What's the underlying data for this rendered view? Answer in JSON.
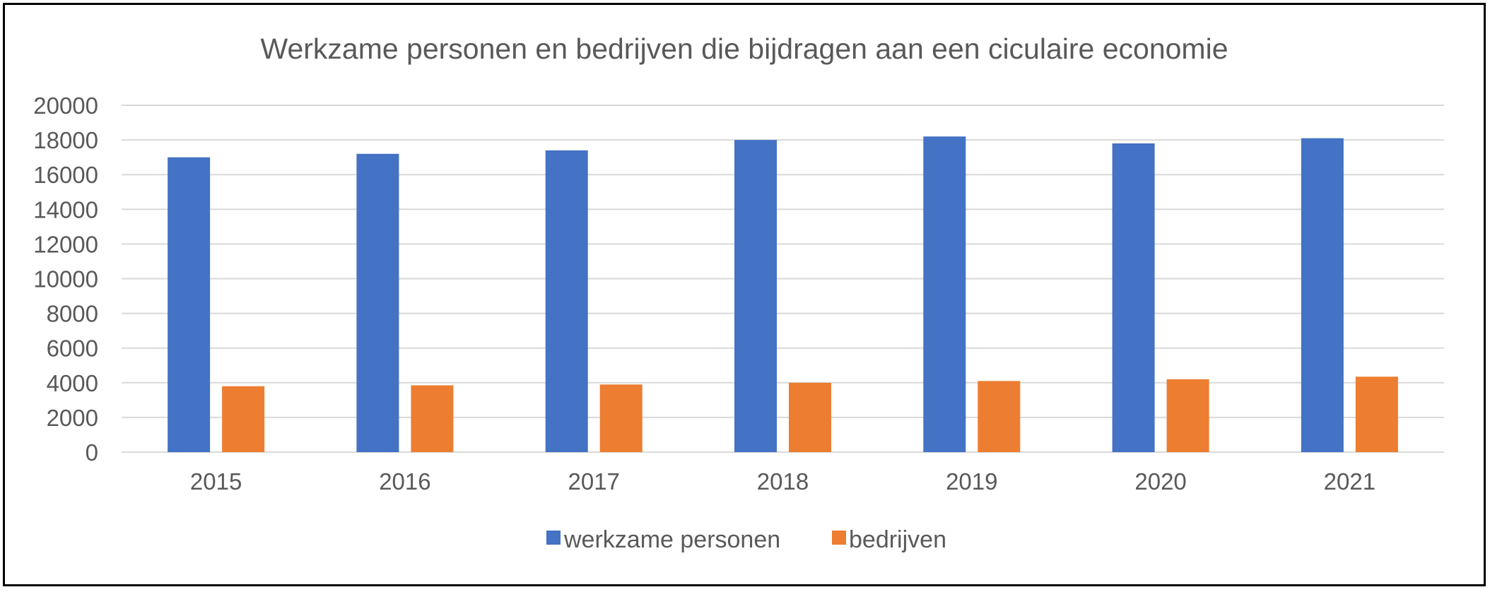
{
  "chart_data": {
    "type": "bar",
    "title": "Werkzame personen en bedrijven die bijdragen aan een ciculaire economie",
    "xlabel": "",
    "ylabel": "",
    "categories": [
      "2015",
      "2016",
      "2017",
      "2018",
      "2019",
      "2020",
      "2021"
    ],
    "series": [
      {
        "name": "werkzame personen",
        "color": "#4472c4",
        "values": [
          17000,
          17200,
          17400,
          18000,
          18200,
          17800,
          18100
        ]
      },
      {
        "name": "bedrijven",
        "color": "#ed7d31",
        "values": [
          3800,
          3850,
          3900,
          4000,
          4100,
          4200,
          4350
        ]
      }
    ],
    "ylim": [
      0,
      20000
    ],
    "yticks": [
      "0",
      "2000",
      "4000",
      "6000",
      "8000",
      "10000",
      "12000",
      "14000",
      "16000",
      "18000",
      "20000"
    ],
    "grid": true,
    "legend_position": "bottom"
  }
}
